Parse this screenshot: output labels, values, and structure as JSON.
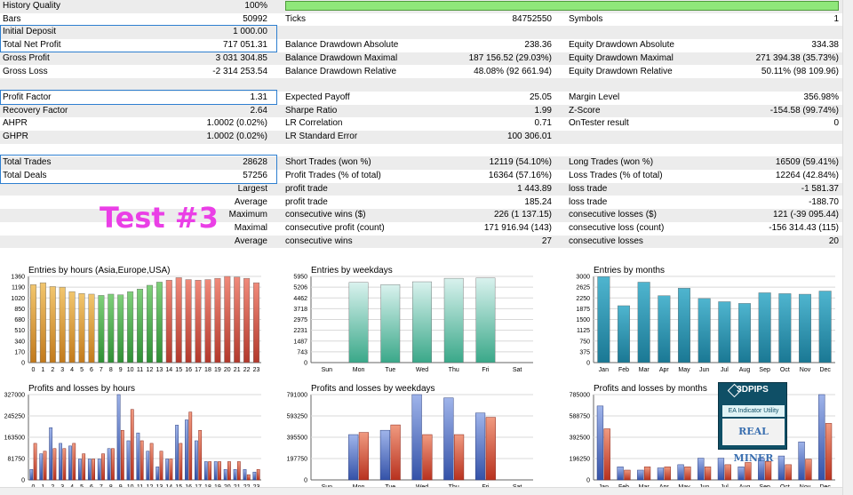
{
  "rows": [
    {
      "shade": true,
      "c": [
        "History Quality",
        "100%",
        "",
        "",
        "",
        ""
      ]
    },
    {
      "shade": false,
      "c": [
        "Bars",
        "50992",
        "Ticks",
        "84752550",
        "Symbols",
        "1"
      ]
    },
    {
      "shade": true,
      "c": [
        "Initial Deposit",
        "1 000.00",
        "",
        "",
        "",
        ""
      ]
    },
    {
      "shade": false,
      "c": [
        "Total Net Profit",
        "717 051.31",
        "Balance Drawdown Absolute",
        "238.36",
        "Equity Drawdown Absolute",
        "334.38"
      ]
    },
    {
      "shade": true,
      "c": [
        "Gross Profit",
        "3 031 304.85",
        "Balance Drawdown Maximal",
        "187 156.52 (29.03%)",
        "Equity Drawdown Maximal",
        "271 394.38 (35.73%)"
      ]
    },
    {
      "shade": false,
      "c": [
        "Gross Loss",
        "-2 314 253.54",
        "Balance Drawdown Relative",
        "48.08% (92 661.94)",
        "Equity Drawdown Relative",
        "50.11% (98 109.96)"
      ]
    },
    {
      "shade": true,
      "c": [
        "",
        "",
        "",
        "",
        "",
        ""
      ]
    },
    {
      "shade": false,
      "c": [
        "Profit Factor",
        "1.31",
        "Expected Payoff",
        "25.05",
        "Margin Level",
        "356.98%"
      ]
    },
    {
      "shade": true,
      "c": [
        "Recovery Factor",
        "2.64",
        "Sharpe Ratio",
        "1.99",
        "Z-Score",
        "-154.58 (99.74%)"
      ]
    },
    {
      "shade": false,
      "c": [
        "AHPR",
        "1.0002 (0.02%)",
        "LR Correlation",
        "0.71",
        "OnTester result",
        "0"
      ]
    },
    {
      "shade": true,
      "c": [
        "GHPR",
        "1.0002 (0.02%)",
        "LR Standard Error",
        "100 306.01",
        "",
        ""
      ]
    },
    {
      "shade": false,
      "c": [
        "",
        "",
        "",
        "",
        "",
        ""
      ]
    },
    {
      "shade": true,
      "c": [
        "Total Trades",
        "28628",
        "Short Trades (won %)",
        "12119 (54.10%)",
        "Long Trades (won %)",
        "16509 (59.41%)"
      ]
    },
    {
      "shade": false,
      "c": [
        "Total Deals",
        "57256",
        "Profit Trades (% of total)",
        "16364 (57.16%)",
        "Loss Trades (% of total)",
        "12264 (42.84%)"
      ]
    },
    {
      "shade": true,
      "c": [
        "",
        "Largest",
        "profit trade",
        "1 443.89",
        "loss trade",
        "-1 581.37"
      ]
    },
    {
      "shade": false,
      "c": [
        "",
        "Average",
        "profit trade",
        "185.24",
        "loss trade",
        "-188.70"
      ]
    },
    {
      "shade": true,
      "c": [
        "",
        "Maximum",
        "consecutive wins ($)",
        "226 (1 137.15)",
        "consecutive losses ($)",
        "121 (-39 095.44)"
      ]
    },
    {
      "shade": false,
      "c": [
        "",
        "Maximal",
        "consecutive profit (count)",
        "171 916.94 (143)",
        "consecutive loss (count)",
        "-156 314.43 (115)"
      ]
    },
    {
      "shade": true,
      "c": [
        "",
        "Average",
        "consecutive wins",
        "27",
        "consecutive losses",
        "20"
      ]
    }
  ],
  "test_label": "Test #3",
  "logo": {
    "brand": "3DPIPS",
    "sub": "EA   Indicator   Utility",
    "name": "REAL MINER"
  },
  "colors": {
    "highlight": "#2e7fd0",
    "quality_bar": "#8fe77a",
    "test_label": "#ea3fe6",
    "profit_bar": "#3f5fb5",
    "loss_bar": "#c8392b"
  },
  "chart_data": [
    {
      "type": "bar",
      "title": "Entries by hours (Asia,Europe,USA)",
      "categories": [
        "0",
        "1",
        "2",
        "3",
        "4",
        "5",
        "6",
        "7",
        "8",
        "9",
        "10",
        "11",
        "12",
        "13",
        "14",
        "15",
        "16",
        "17",
        "18",
        "19",
        "20",
        "21",
        "22",
        "23"
      ],
      "values": [
        1230,
        1260,
        1200,
        1190,
        1120,
        1090,
        1080,
        1060,
        1080,
        1070,
        1120,
        1160,
        1220,
        1270,
        1300,
        1340,
        1310,
        1300,
        1310,
        1330,
        1360,
        1350,
        1330,
        1260
      ],
      "yticks": [
        "0",
        "170",
        "340",
        "510",
        "680",
        "850",
        "1020",
        "1190",
        "1360"
      ],
      "ylim": [
        0,
        1360
      ]
    },
    {
      "type": "bar",
      "title": "Entries by weekdays",
      "categories": [
        "Sun",
        "Mon",
        "Tue",
        "Wed",
        "Thu",
        "Fri",
        "Sat"
      ],
      "values": [
        0,
        5540,
        5380,
        5580,
        5820,
        5840,
        0
      ],
      "yticks": [
        "0",
        "743",
        "1487",
        "2231",
        "2975",
        "3718",
        "4462",
        "5206",
        "5950"
      ],
      "ylim": [
        0,
        5950
      ]
    },
    {
      "type": "bar",
      "title": "Entries by months",
      "categories": [
        "Jan",
        "Feb",
        "Mar",
        "Apr",
        "May",
        "Jun",
        "Jul",
        "Aug",
        "Sep",
        "Oct",
        "Nov",
        "Dec"
      ],
      "values": [
        2990,
        1980,
        2800,
        2330,
        2590,
        2230,
        2120,
        2060,
        2430,
        2400,
        2380,
        2490
      ],
      "yticks": [
        "0",
        "375",
        "750",
        "1125",
        "1500",
        "1875",
        "2250",
        "2625",
        "3000"
      ],
      "ylim": [
        0,
        3000
      ]
    },
    {
      "type": "bar",
      "title": "Profits and losses by hours",
      "categories": [
        "0",
        "1",
        "2",
        "3",
        "4",
        "5",
        "6",
        "7",
        "8",
        "9",
        "10",
        "11",
        "12",
        "13",
        "14",
        "15",
        "16",
        "17",
        "18",
        "19",
        "20",
        "21",
        "22",
        "23"
      ],
      "series": [
        {
          "values": [
            40000,
            100000,
            200000,
            140000,
            130000,
            80000,
            80000,
            80000,
            120000,
            327000,
            150000,
            180000,
            110000,
            50000,
            80000,
            210000,
            230000,
            150000,
            70000,
            70000,
            40000,
            40000,
            40000,
            30000
          ]
        },
        {
          "values": [
            140000,
            110000,
            120000,
            120000,
            140000,
            100000,
            80000,
            100000,
            120000,
            190000,
            270000,
            150000,
            140000,
            110000,
            80000,
            140000,
            260000,
            190000,
            70000,
            70000,
            70000,
            70000,
            20000,
            40000
          ]
        }
      ],
      "yticks": [
        "0",
        "81750",
        "163500",
        "245250",
        "327000"
      ],
      "ylim": [
        0,
        327000
      ]
    },
    {
      "type": "bar",
      "title": "Profits and losses by weekdays",
      "categories": [
        "Sun",
        "Mon",
        "Tue",
        "Wed",
        "Thu",
        "Fri",
        "Sat"
      ],
      "series": [
        {
          "values": [
            0,
            420000,
            460000,
            791000,
            760000,
            620000,
            0
          ]
        },
        {
          "values": [
            0,
            440000,
            510000,
            420000,
            420000,
            580000,
            0
          ]
        }
      ],
      "yticks": [
        "0",
        "197750",
        "395500",
        "593250",
        "791000"
      ],
      "ylim": [
        0,
        791000
      ]
    },
    {
      "type": "bar",
      "title": "Profits and losses by months",
      "categories": [
        "Jan",
        "Feb",
        "Mar",
        "Apr",
        "May",
        "Jun",
        "Jul",
        "Aug",
        "Sep",
        "Oct",
        "Nov",
        "Dec"
      ],
      "series": [
        {
          "values": [
            680000,
            120000,
            90000,
            110000,
            140000,
            200000,
            200000,
            120000,
            200000,
            220000,
            350000,
            785000
          ]
        },
        {
          "values": [
            470000,
            90000,
            120000,
            120000,
            120000,
            120000,
            140000,
            160000,
            170000,
            140000,
            190000,
            520000
          ]
        }
      ],
      "yticks": [
        "0",
        "196250",
        "392500",
        "588750",
        "785000"
      ],
      "ylim": [
        0,
        785000
      ]
    }
  ]
}
